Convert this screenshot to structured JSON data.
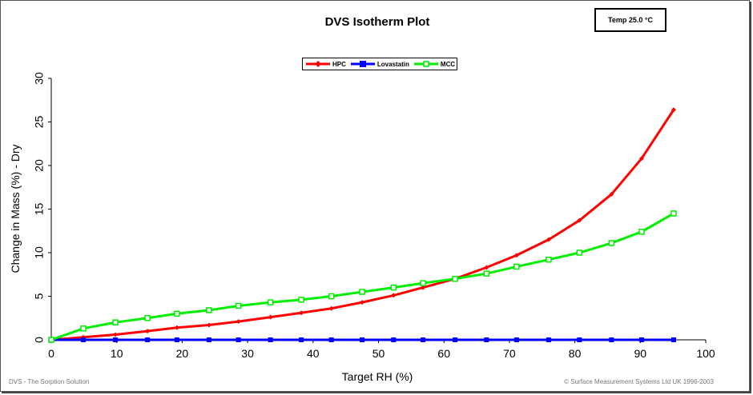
{
  "chart_data": {
    "type": "line",
    "title": "DVS Isotherm Plot",
    "annotation": "Temp 25.0 °C",
    "xlabel": "Target RH (%)",
    "ylabel": "Change in Mass (%) - Dry",
    "xlim": [
      0,
      100
    ],
    "ylim": [
      0,
      30
    ],
    "xticks": [
      0,
      10,
      20,
      30,
      40,
      50,
      60,
      70,
      80,
      90,
      100
    ],
    "yticks": [
      0,
      5,
      10,
      15,
      20,
      25,
      30
    ],
    "grid": false,
    "legend": "top-center",
    "x": [
      0,
      4.9,
      9.8,
      14.7,
      19.2,
      24.1,
      28.6,
      33.5,
      38.2,
      42.8,
      47.5,
      52.3,
      56.8,
      61.7,
      66.5,
      71.1,
      76.0,
      80.7,
      85.6,
      90.2,
      95.1
    ],
    "series": [
      {
        "name": "HPC",
        "color": "#ff0000",
        "marker": "diamond",
        "values": [
          0,
          0.3,
          0.6,
          1.0,
          1.4,
          1.7,
          2.1,
          2.6,
          3.1,
          3.6,
          4.3,
          5.1,
          6.0,
          7.0,
          8.3,
          9.7,
          11.5,
          13.7,
          16.7,
          20.8,
          26.4
        ]
      },
      {
        "name": "Lovastatin",
        "color": "#0000ff",
        "marker": "square",
        "values": [
          0,
          0,
          0,
          0,
          0,
          0,
          0,
          0,
          0,
          0,
          0,
          0,
          0,
          0,
          0,
          0,
          0,
          0,
          0,
          0,
          0
        ]
      },
      {
        "name": "MCC",
        "color": "#00ee00",
        "marker": "open-square",
        "values": [
          0,
          1.3,
          2.0,
          2.5,
          3.0,
          3.4,
          3.9,
          4.3,
          4.6,
          5.0,
          5.5,
          6.0,
          6.5,
          7.0,
          7.6,
          8.4,
          9.2,
          10.0,
          11.1,
          12.4,
          14.5
        ]
      }
    ]
  },
  "footer": {
    "left": "DVS - The Sorption Solution",
    "right": "© Surface Measurement Systems Ltd UK 1996-2003"
  }
}
